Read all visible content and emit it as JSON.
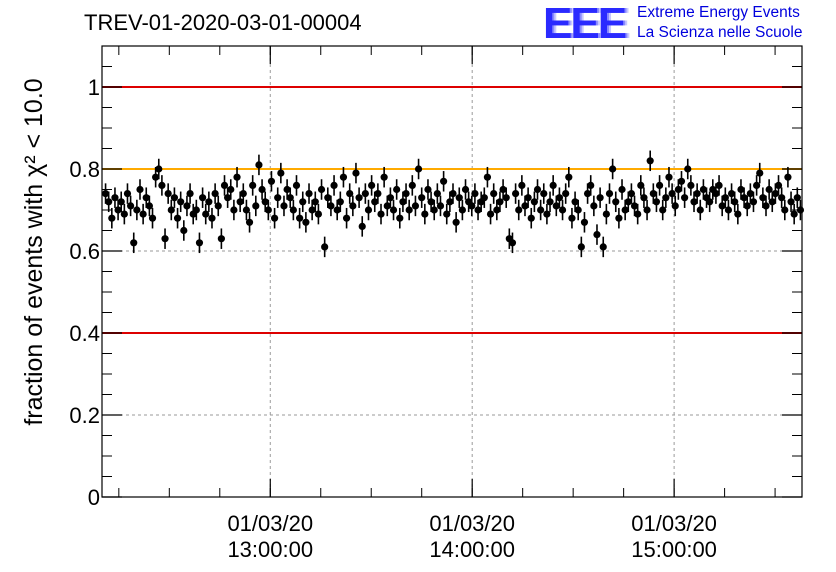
{
  "run_title": "TREV-01-2020-03-01-00004",
  "logo": {
    "mark": "EEE",
    "line1": "Extreme Energy Events",
    "line2": "La Scienza nelle Scuole",
    "color": "#0000dd"
  },
  "chart_data": {
    "type": "scatter",
    "title": "TREV-01-2020-03-01-00004",
    "ylabel": "fraction of events with χ² < 10.0",
    "xlabel": "",
    "ylim": [
      0,
      1.1
    ],
    "xlim": [
      "2020-03-01 12:10:00",
      "2020-03-01 15:38:00"
    ],
    "x_ticks": [
      {
        "date": "01/03/20",
        "time": "13:00:00"
      },
      {
        "date": "01/03/20",
        "time": "14:00:00"
      },
      {
        "date": "01/03/20",
        "time": "15:00:00"
      }
    ],
    "y_ticks": [
      "0",
      "0.2",
      "0.4",
      "0.6",
      "0.8",
      "1"
    ],
    "grid": true,
    "reference_lines": [
      {
        "y": 1.0,
        "color": "#dd0000"
      },
      {
        "y": 0.8,
        "color": "#ffaa00"
      },
      {
        "y": 0.4,
        "color": "#dd0000"
      }
    ],
    "series": [
      {
        "marker_color": "#000000",
        "error_bar": 0.025,
        "values": [
          0.74,
          0.72,
          0.68,
          0.73,
          0.7,
          0.72,
          0.69,
          0.74,
          0.71,
          0.62,
          0.7,
          0.75,
          0.69,
          0.73,
          0.71,
          0.68,
          0.78,
          0.8,
          0.76,
          0.63,
          0.74,
          0.7,
          0.73,
          0.68,
          0.72,
          0.65,
          0.71,
          0.74,
          0.69,
          0.7,
          0.62,
          0.73,
          0.69,
          0.72,
          0.68,
          0.74,
          0.71,
          0.63,
          0.76,
          0.73,
          0.75,
          0.7,
          0.78,
          0.72,
          0.74,
          0.7,
          0.67,
          0.76,
          0.71,
          0.81,
          0.75,
          0.72,
          0.7,
          0.77,
          0.68,
          0.73,
          0.79,
          0.71,
          0.75,
          0.73,
          0.7,
          0.76,
          0.68,
          0.72,
          0.67,
          0.74,
          0.7,
          0.72,
          0.69,
          0.75,
          0.61,
          0.73,
          0.71,
          0.76,
          0.7,
          0.72,
          0.78,
          0.68,
          0.74,
          0.71,
          0.79,
          0.73,
          0.66,
          0.74,
          0.7,
          0.76,
          0.72,
          0.74,
          0.69,
          0.78,
          0.71,
          0.73,
          0.7,
          0.75,
          0.68,
          0.72,
          0.74,
          0.7,
          0.76,
          0.71,
          0.8,
          0.73,
          0.69,
          0.75,
          0.72,
          0.7,
          0.74,
          0.71,
          0.77,
          0.69,
          0.72,
          0.74,
          0.67,
          0.73,
          0.7,
          0.75,
          0.72,
          0.71,
          0.74,
          0.7,
          0.72,
          0.73,
          0.78,
          0.69,
          0.74,
          0.7,
          0.72,
          0.75,
          0.73,
          0.63,
          0.62,
          0.74,
          0.7,
          0.76,
          0.71,
          0.73,
          0.68,
          0.72,
          0.75,
          0.7,
          0.74,
          0.69,
          0.72,
          0.76,
          0.71,
          0.73,
          0.7,
          0.74,
          0.78,
          0.68,
          0.72,
          0.7,
          0.61,
          0.67,
          0.74,
          0.76,
          0.71,
          0.64,
          0.73,
          0.61,
          0.69,
          0.74,
          0.8,
          0.72,
          0.68,
          0.75,
          0.7,
          0.72,
          0.74,
          0.71,
          0.69,
          0.76,
          0.73,
          0.7,
          0.82,
          0.74,
          0.72,
          0.76,
          0.7,
          0.73,
          0.78,
          0.74,
          0.71,
          0.75,
          0.77,
          0.73,
          0.8,
          0.76,
          0.72,
          0.74,
          0.7,
          0.75,
          0.73,
          0.72,
          0.75,
          0.74,
          0.76,
          0.71,
          0.73,
          0.7,
          0.74,
          0.72,
          0.69,
          0.75,
          0.73,
          0.71,
          0.74,
          0.72,
          0.76,
          0.79,
          0.73,
          0.71,
          0.75,
          0.72,
          0.74,
          0.76,
          0.73,
          0.7,
          0.78,
          0.72,
          0.69,
          0.73,
          0.7
        ]
      }
    ]
  }
}
